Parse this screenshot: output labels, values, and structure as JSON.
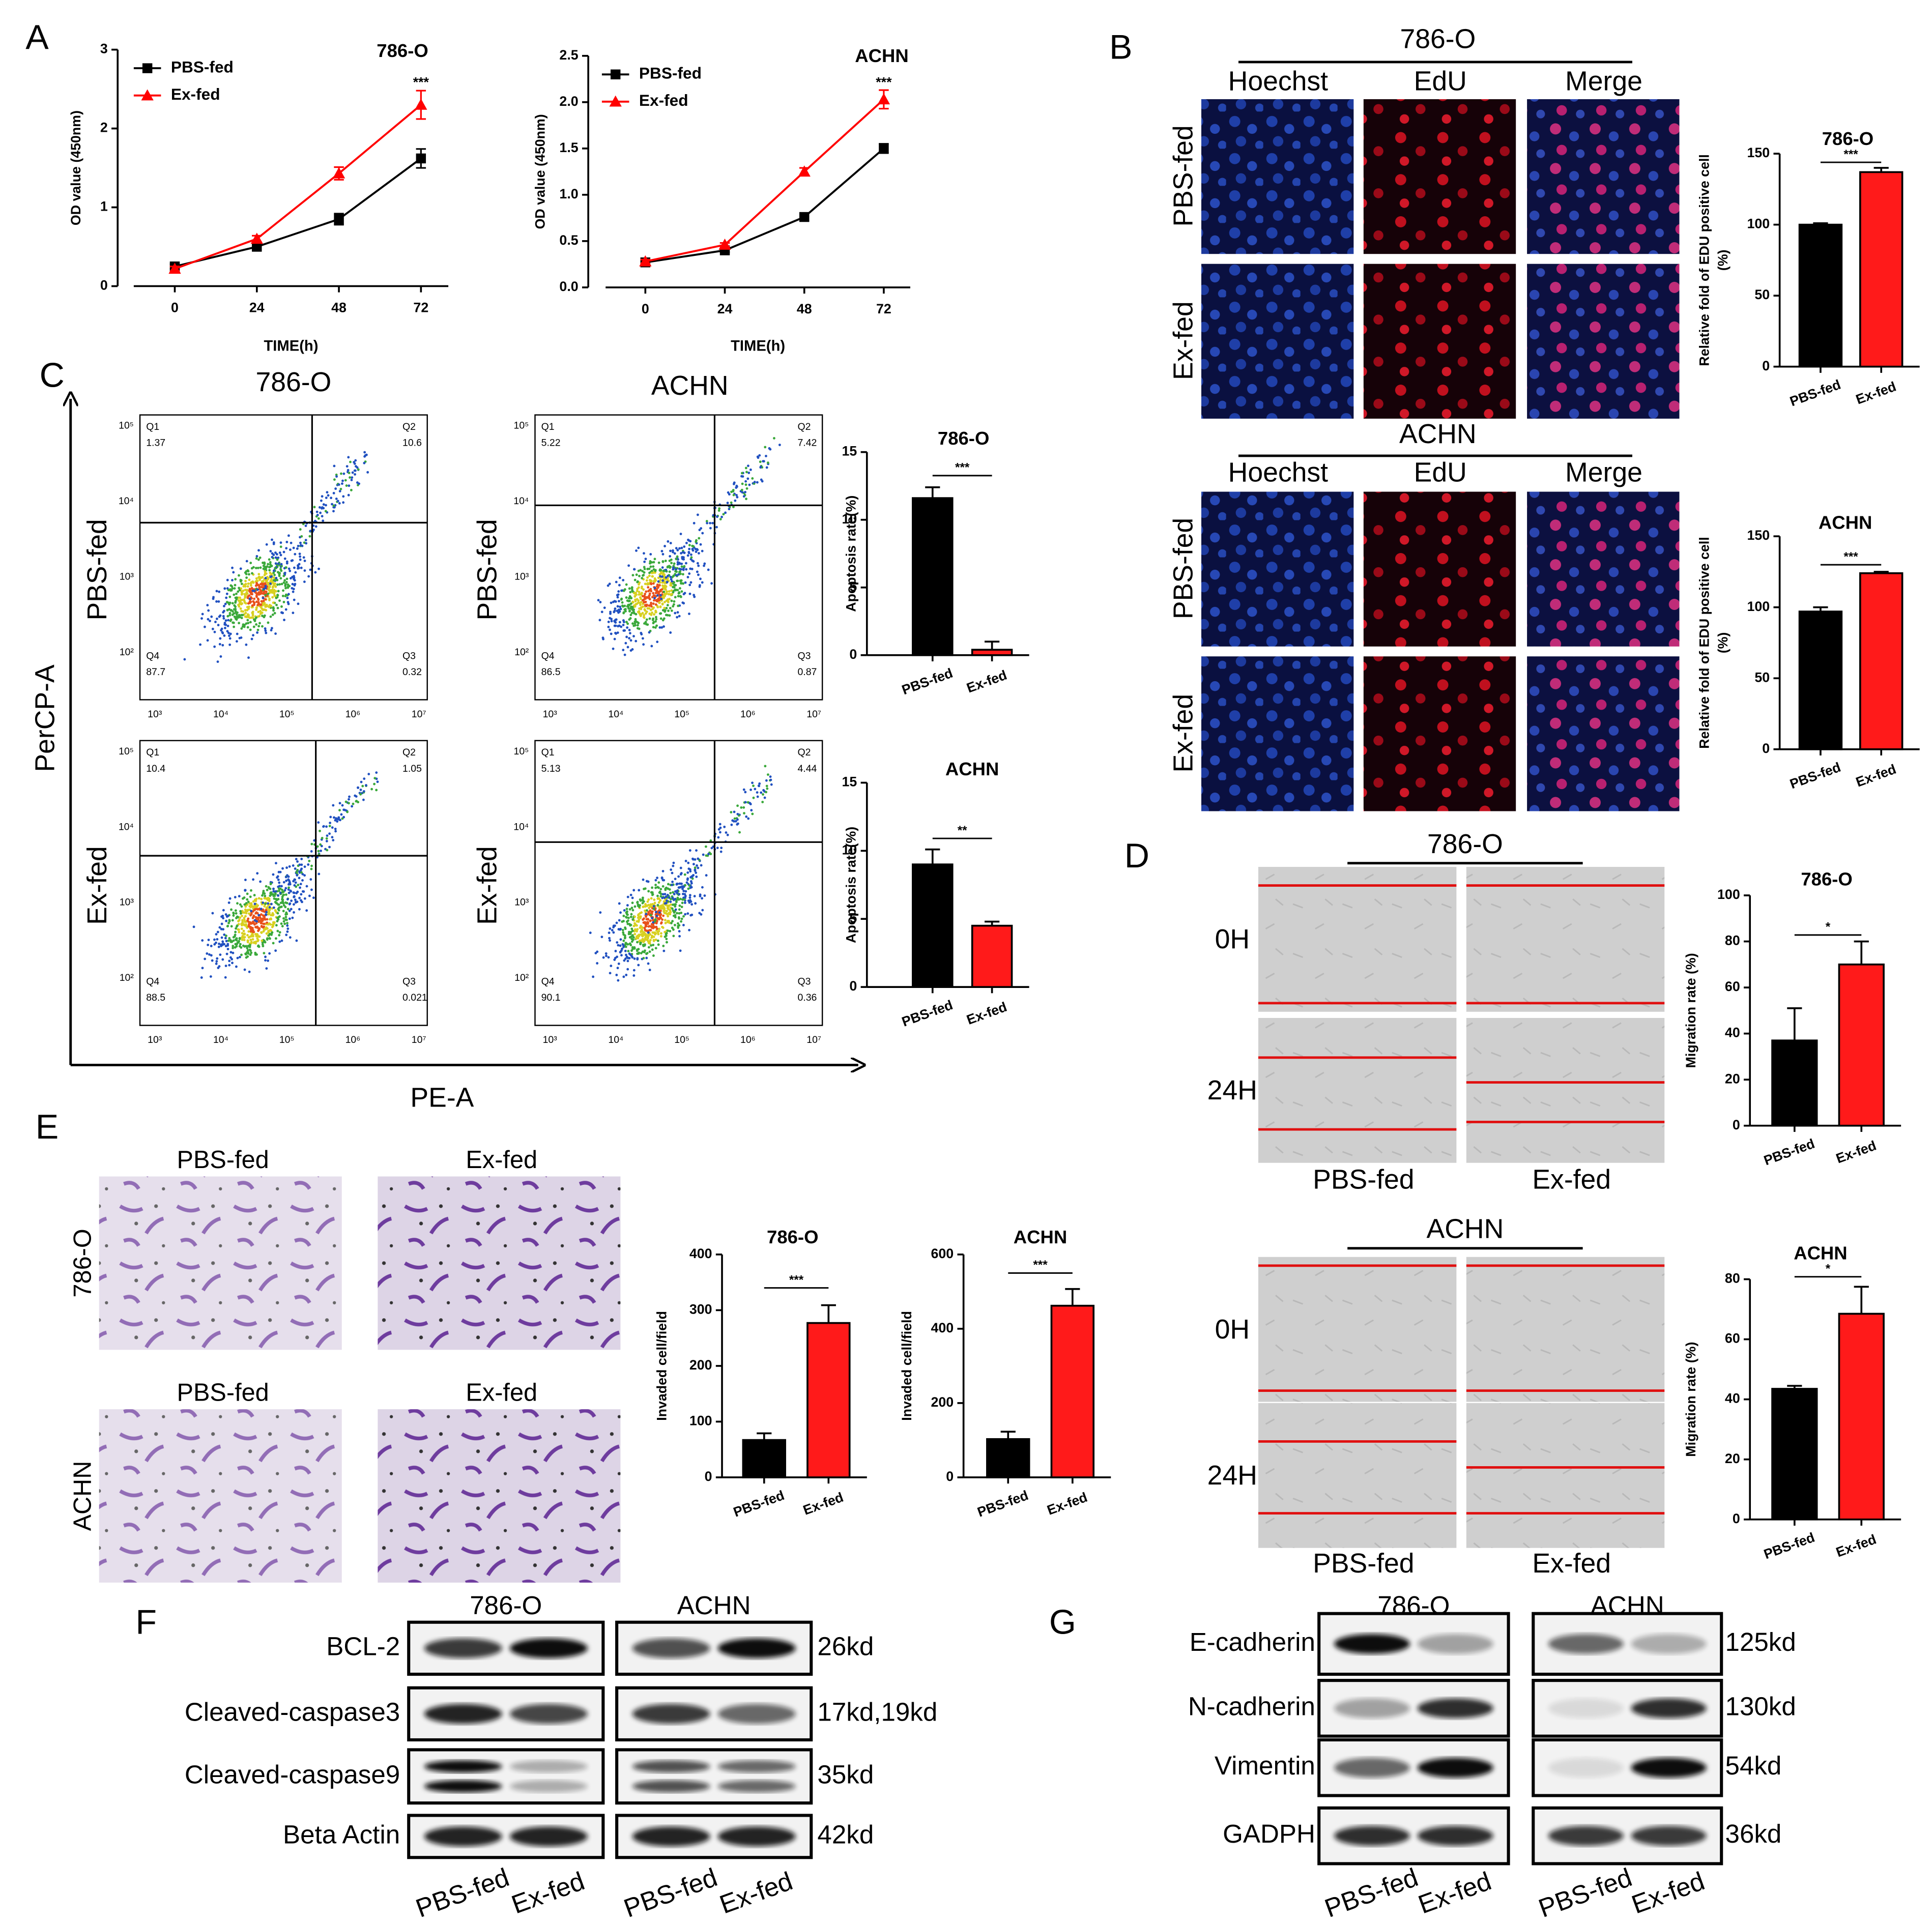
{
  "chart_data": [
    {
      "type": "line",
      "title": "786-O",
      "xlabel": "TIME(h)",
      "ylabel": "OD value (450nm)",
      "x": [
        0,
        24,
        48,
        72
      ],
      "xlim": [
        -12,
        80
      ],
      "xticks": [
        0,
        24,
        48,
        72
      ],
      "ylim": [
        0,
        3
      ],
      "yticks": [
        0,
        1,
        2,
        3
      ],
      "legend": "upper left",
      "annotation": "***",
      "series": [
        {
          "name": "PBS-fed",
          "color": "#000000",
          "marker": "square",
          "values": [
            0.25,
            0.5,
            0.85,
            1.62
          ],
          "errors": [
            0.03,
            0.04,
            0.07,
            0.12
          ]
        },
        {
          "name": "Ex-fed",
          "color": "#ff0000",
          "marker": "triangle",
          "values": [
            0.22,
            0.6,
            1.43,
            2.3
          ],
          "errors": [
            0.03,
            0.04,
            0.08,
            0.18
          ]
        }
      ]
    },
    {
      "type": "line",
      "title": "ACHN",
      "xlabel": "TIME(h)",
      "ylabel": "OD value (450nm)",
      "x": [
        0,
        24,
        48,
        72
      ],
      "xlim": [
        -12,
        80
      ],
      "xticks": [
        0,
        24,
        48,
        72
      ],
      "ylim": [
        0,
        2.5
      ],
      "yticks": [
        {
          "value": 0,
          "label": "0.0"
        },
        0.5,
        {
          "value": 1,
          "label": "1.0"
        },
        1.5,
        {
          "value": 2,
          "label": "2.0"
        },
        2.5
      ],
      "legend": "upper left",
      "annotation": "***",
      "series": [
        {
          "name": "PBS-fed",
          "color": "#000000",
          "marker": "square",
          "values": [
            0.27,
            0.4,
            0.76,
            1.5
          ],
          "errors": [
            0.02,
            0.02,
            0.04,
            0.05
          ]
        },
        {
          "name": "Ex-fed",
          "color": "#ff0000",
          "marker": "triangle",
          "values": [
            0.28,
            0.46,
            1.25,
            2.03
          ],
          "errors": [
            0.02,
            0.02,
            0.04,
            0.1
          ]
        }
      ]
    },
    {
      "type": "bar",
      "title": "786-O",
      "ylabel": [
        "Relative fold of EDU positive cell",
        "(%)"
      ],
      "categories": [
        "PBS-fed",
        "Ex-fed"
      ],
      "colors": [
        "#000000",
        "#ff1a1a"
      ],
      "values": [
        100,
        137
      ],
      "errors": [
        1,
        3
      ],
      "ylim": [
        0,
        150
      ],
      "yticks": [
        0,
        50,
        100,
        150
      ],
      "annotation": "***"
    },
    {
      "type": "bar",
      "title": "ACHN",
      "ylabel": [
        "Relative fold of EDU positive cell",
        "(%)"
      ],
      "categories": [
        "PBS-fed",
        "Ex-fed"
      ],
      "colors": [
        "#000000",
        "#ff1a1a"
      ],
      "values": [
        97,
        124
      ],
      "errors": [
        3,
        1
      ],
      "ylim": [
        0,
        150
      ],
      "yticks": [
        0,
        50,
        100,
        150
      ],
      "annotation": "***"
    },
    {
      "type": "bar",
      "title": "786-O",
      "ylabel": "Apoptosis rate(%)",
      "categories": [
        "PBS-fed",
        "Ex-fed"
      ],
      "colors": [
        "#000000",
        "#ff1a1a"
      ],
      "values": [
        11.6,
        0.4
      ],
      "errors": [
        0.8,
        0.6
      ],
      "ylim": [
        0,
        15
      ],
      "yticks": [
        0,
        5,
        10,
        15
      ],
      "annotation": "***"
    },
    {
      "type": "bar",
      "title": "ACHN",
      "ylabel": "Apoptosis rate(%)",
      "categories": [
        "PBS-fed",
        "Ex-fed"
      ],
      "colors": [
        "#000000",
        "#ff1a1a"
      ],
      "values": [
        9.0,
        4.5
      ],
      "errors": [
        1.1,
        0.3
      ],
      "ylim": [
        0,
        15
      ],
      "yticks": [
        0,
        5,
        10,
        15
      ],
      "annotation": "**"
    },
    {
      "type": "bar",
      "title": "786-O",
      "ylabel": "Migration rate (%)",
      "categories": [
        "PBS-fed",
        "Ex-fed"
      ],
      "colors": [
        "#000000",
        "#ff1a1a"
      ],
      "values": [
        37,
        70
      ],
      "errors": [
        14,
        10
      ],
      "ylim": [
        0,
        100
      ],
      "yticks": [
        0,
        20,
        40,
        60,
        80,
        100
      ],
      "annotation": "*"
    },
    {
      "type": "bar",
      "title": "ACHN",
      "ylabel": "Migration rate (%)",
      "categories": [
        "PBS-fed",
        "Ex-fed"
      ],
      "colors": [
        "#000000",
        "#ff1a1a"
      ],
      "values": [
        43.5,
        68.5
      ],
      "errors": [
        1,
        9
      ],
      "ylim": [
        0,
        80
      ],
      "yticks": [
        0,
        20,
        40,
        60,
        80
      ],
      "annotation": "*"
    },
    {
      "type": "bar",
      "title": "786-O",
      "ylabel": "Invaded cell/field",
      "categories": [
        "PBS-fed",
        "Ex-fed"
      ],
      "colors": [
        "#000000",
        "#ff1a1a"
      ],
      "values": [
        67,
        277
      ],
      "errors": [
        12,
        32
      ],
      "ylim": [
        0,
        400
      ],
      "yticks": [
        0,
        100,
        200,
        300,
        400
      ],
      "annotation": "***"
    },
    {
      "type": "bar",
      "title": "ACHN",
      "ylabel": "Invaded cell/field",
      "categories": [
        "PBS-fed",
        "Ex-fed"
      ],
      "colors": [
        "#000000",
        "#ff1a1a"
      ],
      "values": [
        103,
        462
      ],
      "errors": [
        20,
        45
      ],
      "ylim": [
        0,
        600
      ],
      "yticks": [
        0,
        200,
        400,
        600
      ],
      "annotation": "***"
    }
  ],
  "panel_labels": [
    "A",
    "B",
    "C",
    "D",
    "E",
    "F",
    "G"
  ],
  "edu": {
    "groups": [
      {
        "cell_line": "786-O",
        "columns": [
          "Hoechst",
          "EdU",
          "Merge"
        ],
        "rows": [
          "PBS-fed",
          "Ex-fed"
        ]
      },
      {
        "cell_line": "ACHN",
        "columns": [
          "Hoechst",
          "EdU",
          "Merge"
        ],
        "rows": [
          "PBS-fed",
          "Ex-fed"
        ]
      }
    ]
  },
  "flow": {
    "xlabel": "PE-A",
    "ylabel": "PerCP-A",
    "columns": [
      "786-O",
      "ACHN"
    ],
    "rows": [
      "PBS-fed",
      "Ex-fed"
    ],
    "xticks": [
      "10³",
      "10⁴",
      "10⁵",
      "10⁶",
      "10⁷"
    ],
    "yticks": [
      "10²",
      "10³",
      "10⁴",
      "10⁵"
    ],
    "plots": [
      {
        "quadrants": [
          [
            "Q1",
            "1.37"
          ],
          [
            "Q2",
            "10.6"
          ],
          [
            "Q4",
            "87.7"
          ],
          [
            "Q3",
            "0.32"
          ]
        ]
      },
      {
        "quadrants": [
          [
            "Q1",
            "5.22"
          ],
          [
            "Q2",
            "7.42"
          ],
          [
            "Q4",
            "86.5"
          ],
          [
            "Q3",
            "0.87"
          ]
        ]
      },
      {
        "quadrants": [
          [
            "Q1",
            "10.4"
          ],
          [
            "Q2",
            "1.05"
          ],
          [
            "Q4",
            "88.5"
          ],
          [
            "Q3",
            "0.021"
          ]
        ]
      },
      {
        "quadrants": [
          [
            "Q1",
            "5.13"
          ],
          [
            "Q2",
            "4.44"
          ],
          [
            "Q4",
            "90.1"
          ],
          [
            "Q3",
            "0.36"
          ]
        ]
      }
    ]
  },
  "wound": {
    "groups": [
      {
        "cell_line": "786-O",
        "times": [
          "0H",
          "24H"
        ],
        "conditions": [
          "PBS-fed",
          "Ex-fed"
        ]
      },
      {
        "cell_line": "ACHN",
        "times": [
          "0H",
          "24H"
        ],
        "conditions": [
          "PBS-fed",
          "Ex-fed"
        ]
      }
    ]
  },
  "transwell": {
    "conditions": [
      "PBS-fed",
      "Ex-fed"
    ],
    "cell_lines": [
      "786-O",
      "ACHN"
    ]
  },
  "western": [
    {
      "cell_lines": [
        "786-O",
        "ACHN"
      ],
      "proteins": [
        "BCL-2",
        "Cleaved-caspase3",
        "Cleaved-caspase9",
        "Beta Actin"
      ],
      "sizes": [
        "26kd",
        "17kd,19kd",
        "35kd",
        "42kd"
      ],
      "lanes": [
        "PBS-fed",
        "Ex-fed"
      ]
    },
    {
      "cell_lines": [
        "786-O",
        "ACHN"
      ],
      "proteins": [
        "E-cadherin",
        "N-cadherin",
        "Vimentin",
        "GADPH"
      ],
      "sizes": [
        "125kd",
        "130kd",
        "54kd",
        "36kd"
      ],
      "lanes": [
        "PBS-fed",
        "Ex-fed"
      ]
    }
  ]
}
